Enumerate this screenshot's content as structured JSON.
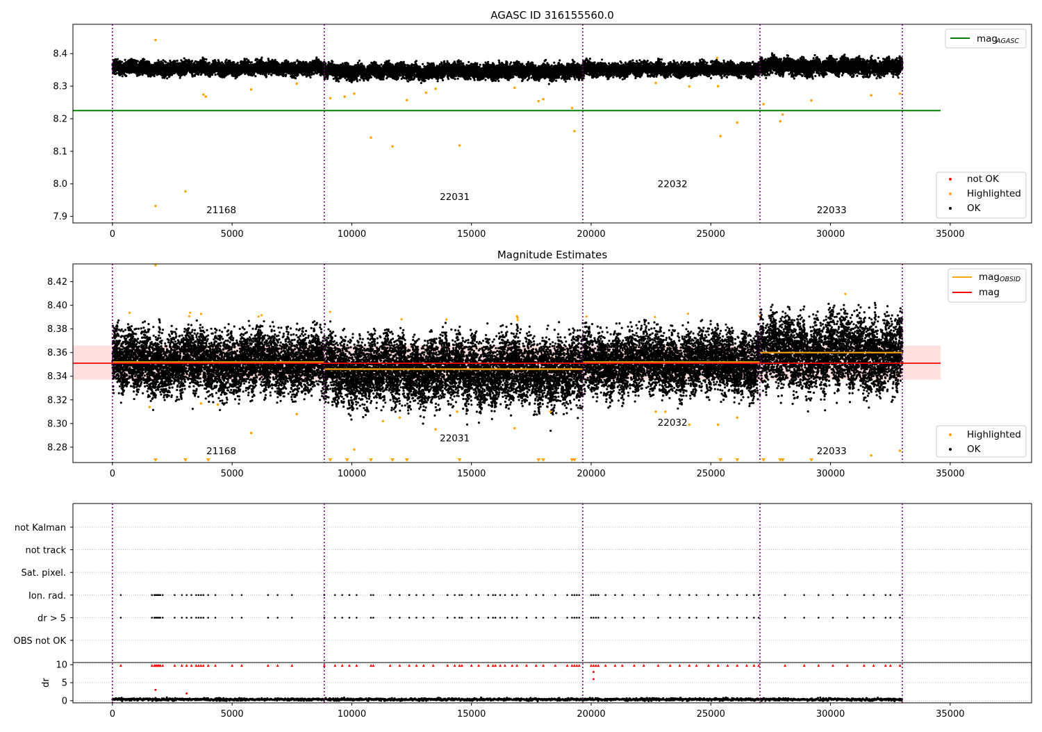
{
  "chart_data": [
    {
      "type": "scatter",
      "title": "AGASC ID 316155560.0",
      "xlim": [
        -1650,
        38400
      ],
      "ylim": [
        7.88,
        8.49
      ],
      "xticks": [
        0,
        5000,
        10000,
        15000,
        20000,
        25000,
        30000,
        35000
      ],
      "yticks": [
        7.9,
        8.0,
        8.1,
        8.2,
        8.3,
        8.4
      ],
      "obsid_boundaries": [
        0,
        8850,
        19650,
        27050,
        33000
      ],
      "obsid_labels": [
        {
          "text": "21168",
          "x": 4550,
          "y": 7.91
        },
        {
          "text": "22031",
          "x": 14300,
          "y": 7.95
        },
        {
          "text": "22032",
          "x": 23400,
          "y": 7.99
        },
        {
          "text": "22033",
          "x": 30050,
          "y": 7.91
        }
      ],
      "mag_agasc": 8.225,
      "mag_agasc_xrange": [
        -1650,
        34600
      ],
      "ok_bands": [
        {
          "x0": 0,
          "x1": 8850,
          "center": 8.355,
          "halfwidth": 0.018
        },
        {
          "x0": 8850,
          "x1": 19650,
          "center": 8.346,
          "halfwidth": 0.02
        },
        {
          "x0": 19650,
          "x1": 27050,
          "center": 8.352,
          "halfwidth": 0.018
        },
        {
          "x0": 27050,
          "x1": 33000,
          "center": 8.36,
          "halfwidth": 0.022
        }
      ],
      "highlighted_points": [
        [
          1800,
          7.932
        ],
        [
          3050,
          7.977
        ],
        [
          10800,
          8.142
        ],
        [
          11700,
          8.115
        ],
        [
          14500,
          8.118
        ],
        [
          19300,
          8.162
        ],
        [
          25400,
          8.147
        ],
        [
          26100,
          8.188
        ],
        [
          27900,
          8.192
        ],
        [
          28000,
          8.213
        ],
        [
          1800,
          8.442
        ],
        [
          3800,
          8.274
        ],
        [
          3900,
          8.268
        ],
        [
          5800,
          8.29
        ],
        [
          9100,
          8.263
        ],
        [
          9700,
          8.268
        ],
        [
          10100,
          8.277
        ],
        [
          12300,
          8.257
        ],
        [
          13100,
          8.28
        ],
        [
          17800,
          8.254
        ],
        [
          18000,
          8.26
        ],
        [
          19200,
          8.233
        ],
        [
          22700,
          8.31
        ],
        [
          24100,
          8.299
        ],
        [
          25300,
          8.3
        ],
        [
          27200,
          8.245
        ],
        [
          29200,
          8.256
        ],
        [
          31700,
          8.272
        ],
        [
          32900,
          8.277
        ],
        [
          16800,
          8.295
        ],
        [
          13500,
          8.292
        ],
        [
          7700,
          8.308
        ]
      ],
      "legend_top": [
        {
          "label": "mag",
          "subscript": "AGASC",
          "color": "#008000"
        }
      ],
      "legend_bottom": [
        {
          "label": "not OK",
          "color": "#ff0000"
        },
        {
          "label": "Highlighted",
          "color": "#ffa500"
        },
        {
          "label": "OK",
          "color": "#000000"
        }
      ]
    },
    {
      "type": "scatter",
      "title": "Magnitude Estimates",
      "xlim": [
        -1650,
        38400
      ],
      "ylim": [
        8.267,
        8.435
      ],
      "xticks": [
        0,
        5000,
        10000,
        15000,
        20000,
        25000,
        30000,
        35000
      ],
      "yticks": [
        8.28,
        8.3,
        8.32,
        8.34,
        8.36,
        8.38,
        8.4,
        8.42
      ],
      "obsid_boundaries": [
        0,
        8850,
        19650,
        27050,
        33000
      ],
      "obsid_labels": [
        {
          "text": "21168",
          "x": 4550,
          "y": 8.274
        },
        {
          "text": "22031",
          "x": 14300,
          "y": 8.285
        },
        {
          "text": "22032",
          "x": 23400,
          "y": 8.298
        },
        {
          "text": "22033",
          "x": 30050,
          "y": 8.274
        }
      ],
      "mag": 8.351,
      "mag_band": [
        8.337,
        8.366
      ],
      "mag_xrange": [
        -1650,
        34600
      ],
      "mag_obsid": [
        {
          "x0": 0,
          "x1": 8850,
          "value": 8.352
        },
        {
          "x0": 8850,
          "x1": 19650,
          "value": 8.346
        },
        {
          "x0": 19650,
          "x1": 27050,
          "value": 8.352
        },
        {
          "x0": 27050,
          "x1": 33000,
          "value": 8.36
        }
      ],
      "ok_bands": [
        {
          "x0": 0,
          "x1": 8850,
          "center": 8.352,
          "halfwidth": 0.02
        },
        {
          "x0": 8850,
          "x1": 19650,
          "center": 8.345,
          "halfwidth": 0.022
        },
        {
          "x0": 19650,
          "x1": 27050,
          "center": 8.352,
          "halfwidth": 0.02
        },
        {
          "x0": 27050,
          "x1": 33000,
          "center": 8.36,
          "halfwidth": 0.024
        }
      ],
      "highlighted_points": [
        [
          1800,
          8.434
        ],
        [
          1550,
          8.314
        ],
        [
          3700,
          8.317
        ],
        [
          4400,
          8.316
        ],
        [
          5800,
          8.292
        ],
        [
          7700,
          8.308
        ],
        [
          10100,
          8.278
        ],
        [
          13500,
          8.295
        ],
        [
          14400,
          8.31
        ],
        [
          16800,
          8.296
        ],
        [
          18300,
          8.31
        ],
        [
          22700,
          8.31
        ],
        [
          24100,
          8.299
        ],
        [
          25300,
          8.299
        ],
        [
          26100,
          8.305
        ],
        [
          31700,
          8.273
        ],
        [
          32900,
          8.277
        ],
        [
          11300,
          8.302
        ],
        [
          12000,
          8.305
        ],
        [
          23100,
          8.31
        ]
      ],
      "clipped_markers_x": [
        1800,
        3050,
        4000,
        9100,
        9800,
        10800,
        11700,
        12300,
        14500,
        17800,
        18000,
        19200,
        19300,
        25400,
        26100,
        27200,
        27900,
        28000,
        29200
      ],
      "legend_top": [
        {
          "label": "mag",
          "subscript": "OBSID",
          "color": "#ffa500"
        },
        {
          "label": "mag",
          "subscript": "",
          "color": "#ff0000"
        }
      ],
      "legend_bottom": [
        {
          "label": "Highlighted",
          "color": "#ffa500"
        },
        {
          "label": "OK",
          "color": "#000000"
        }
      ]
    },
    {
      "type": "scatter",
      "xlim": [
        -1650,
        38400
      ],
      "xticks": [
        0,
        5000,
        10000,
        15000,
        20000,
        25000,
        30000,
        35000
      ],
      "categories": [
        "not Kalman",
        "not track",
        "Sat. pixel.",
        "Ion. rad.",
        "dr > 5",
        "OBS not OK"
      ],
      "flag_rows": [
        "Ion. rad.",
        "dr > 5"
      ],
      "flag_x": [
        350,
        1650,
        1750,
        1800,
        1850,
        1900,
        1950,
        2000,
        2100,
        2600,
        2900,
        3100,
        3300,
        3500,
        3600,
        3700,
        3800,
        4000,
        4300,
        5000,
        5400,
        6500,
        6900,
        7500,
        8850,
        9300,
        9600,
        9900,
        10200,
        10800,
        10900,
        11600,
        12000,
        12400,
        12700,
        13000,
        13400,
        14000,
        14300,
        14500,
        14600,
        15000,
        15300,
        15700,
        15900,
        16000,
        16200,
        16400,
        16700,
        16900,
        17300,
        17700,
        18000,
        18500,
        19000,
        19200,
        19300,
        19400,
        19500,
        20000,
        20100,
        20200,
        20300,
        20600,
        21000,
        21300,
        21800,
        22200,
        22800,
        23300,
        23700,
        24100,
        24400,
        24900,
        25300,
        25700,
        26100,
        26500,
        26800,
        27000,
        28100,
        28900,
        29500,
        30100,
        30700,
        31400,
        31800,
        32300,
        32500,
        32900
      ],
      "dr_ylabel": "dr",
      "dr_ylim": [
        -0.6,
        10.6
      ],
      "dr_yticks": [
        0,
        5,
        10
      ],
      "dr_outliers": [
        [
          1800,
          3.0
        ],
        [
          3100,
          2.0
        ],
        [
          20100,
          8.0
        ],
        [
          20100,
          6.0
        ]
      ]
    }
  ]
}
